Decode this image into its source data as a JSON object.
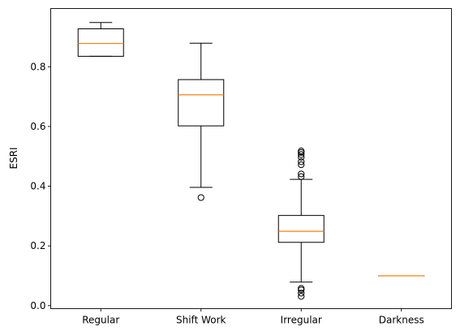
{
  "chart_data": {
    "type": "boxplot",
    "title": "",
    "xlabel": "",
    "ylabel": "ESRI",
    "ylim": [
      -0.01,
      0.995
    ],
    "yticks": [
      0.0,
      0.2,
      0.4,
      0.6,
      0.8
    ],
    "ytick_labels": [
      "0.0",
      "0.2",
      "0.4",
      "0.6",
      "0.8"
    ],
    "grid": false,
    "categories": [
      "Regular",
      "Shift Work",
      "Irregular",
      "Darkness"
    ],
    "boxes": [
      {
        "whisker_low": 0.835,
        "q1": 0.835,
        "median": 0.878,
        "q3": 0.927,
        "whisker_high": 0.948,
        "outliers": []
      },
      {
        "whisker_low": 0.396,
        "q1": 0.602,
        "median": 0.706,
        "q3": 0.757,
        "whisker_high": 0.879,
        "outliers": [
          0.362
        ]
      },
      {
        "whisker_low": 0.079,
        "q1": 0.212,
        "median": 0.249,
        "q3": 0.302,
        "whisker_high": 0.423,
        "outliers": [
          0.031,
          0.042,
          0.053,
          0.058,
          0.432,
          0.441,
          0.472,
          0.482,
          0.497,
          0.506,
          0.513,
          0.518
        ]
      },
      {
        "whisker_low": 0.1,
        "q1": 0.1,
        "median": 0.1,
        "q3": 0.1,
        "whisker_high": 0.1,
        "outliers": []
      }
    ],
    "colors": {
      "box": "#000000",
      "median": "#ff7f0e",
      "axes": "#000000"
    }
  }
}
